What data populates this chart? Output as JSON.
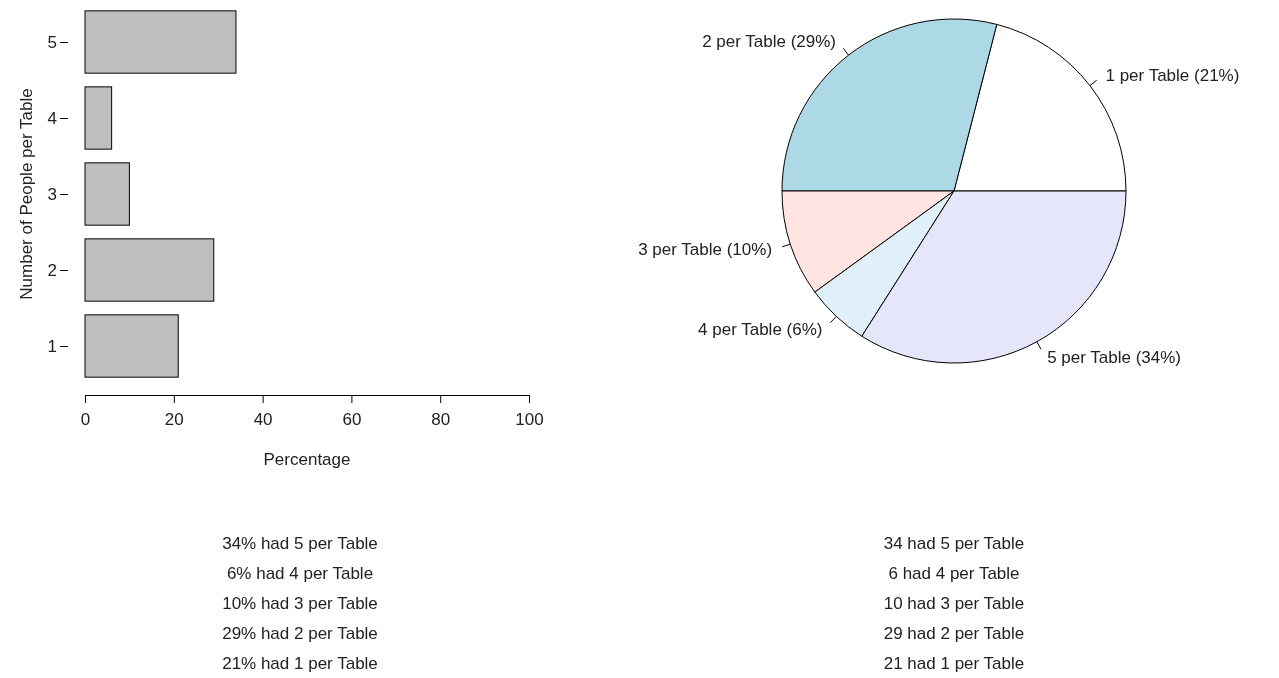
{
  "chart_data": [
    {
      "type": "bar",
      "orientation": "horizontal",
      "categories": [
        "5",
        "4",
        "3",
        "2",
        "1"
      ],
      "values": [
        34,
        6,
        10,
        29,
        21
      ],
      "color": "#bebebe",
      "xlim": [
        0,
        100
      ],
      "xticks": [
        0,
        20,
        40,
        60,
        80,
        100
      ],
      "xlabel": "Percentage",
      "ylabel": "Number of People per Table",
      "annotations": [
        "34% had 5 per Table",
        "6% had 4 per Table",
        "10% had 3 per Table",
        "29% had 2 per Table",
        "21% had 1 per Table"
      ]
    },
    {
      "type": "pie",
      "categories": [
        "1 per Table (21%)",
        "2 per Table (29%)",
        "3 per Table (10%)",
        "4 per Table (6%)",
        "5 per Table (34%)"
      ],
      "values": [
        21,
        29,
        10,
        6,
        34
      ],
      "colors": [
        "#ffffff",
        "#add8e6",
        "#ffe4e1",
        "#e0f0f8",
        "#e6e6fa"
      ],
      "annotations": [
        "34 had 5 per Table",
        "6 had 4 per Table",
        "10 had 3 per Table",
        "29 had 2 per Table",
        "21 had 1 per Table"
      ]
    }
  ]
}
